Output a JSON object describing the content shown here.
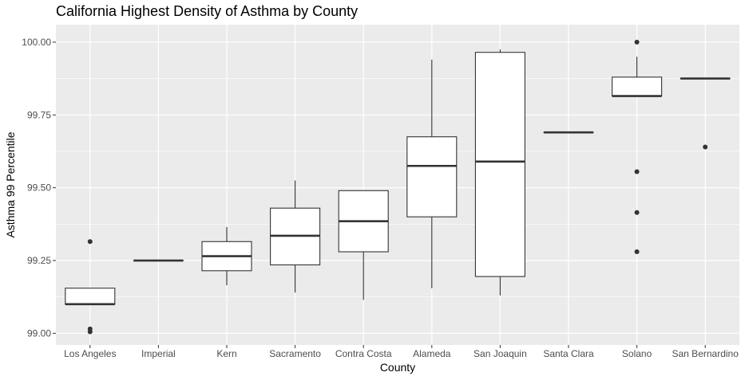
{
  "chart_data": {
    "type": "boxplot",
    "title": "California Highest Density of Asthma by County",
    "xlabel": "County",
    "ylabel": "Asthma 99 Percentile",
    "ylim": [
      98.96,
      100.06
    ],
    "yticks": [
      99.0,
      99.25,
      99.5,
      99.75,
      100.0
    ],
    "ytick_labels": [
      "99.00",
      "99.25",
      "99.50",
      "99.75",
      "100.00"
    ],
    "grid": true,
    "legend": "none",
    "colors": {
      "panel_bg": "#ebebeb",
      "grid_major": "#ffffff",
      "box_fill": "#ffffff",
      "box_stroke": "#333333",
      "tick_mark": "#333333"
    },
    "categories": [
      "Los Angeles",
      "Imperial",
      "Kern",
      "Sacramento",
      "Contra Costa",
      "Alameda",
      "San Joaquin",
      "Santa Clara",
      "Solano",
      "San Bernardino"
    ],
    "boxes": [
      {
        "county": "Los Angeles",
        "whisker_low": 99.1,
        "q1": 99.1,
        "median": 99.1,
        "q3": 99.155,
        "whisker_high": 99.155,
        "outliers": [
          99.015,
          99.005,
          99.315
        ]
      },
      {
        "county": "Imperial",
        "whisker_low": 99.25,
        "q1": 99.25,
        "median": 99.25,
        "q3": 99.25,
        "whisker_high": 99.25,
        "outliers": []
      },
      {
        "county": "Kern",
        "whisker_low": 99.165,
        "q1": 99.215,
        "median": 99.265,
        "q3": 99.315,
        "whisker_high": 99.365,
        "outliers": []
      },
      {
        "county": "Sacramento",
        "whisker_low": 99.14,
        "q1": 99.235,
        "median": 99.335,
        "q3": 99.43,
        "whisker_high": 99.525,
        "outliers": []
      },
      {
        "county": "Contra Costa",
        "whisker_low": 99.115,
        "q1": 99.28,
        "median": 99.385,
        "q3": 99.49,
        "whisker_high": 99.49,
        "outliers": []
      },
      {
        "county": "Alameda",
        "whisker_low": 99.155,
        "q1": 99.4,
        "median": 99.575,
        "q3": 99.675,
        "whisker_high": 99.94,
        "outliers": []
      },
      {
        "county": "San Joaquin",
        "whisker_low": 99.13,
        "q1": 99.195,
        "median": 99.59,
        "q3": 99.965,
        "whisker_high": 99.975,
        "outliers": []
      },
      {
        "county": "Santa Clara",
        "whisker_low": 99.69,
        "q1": 99.69,
        "median": 99.69,
        "q3": 99.69,
        "whisker_high": 99.69,
        "outliers": []
      },
      {
        "county": "Solano",
        "whisker_low": 99.815,
        "q1": 99.815,
        "median": 99.815,
        "q3": 99.88,
        "whisker_high": 99.95,
        "outliers": [
          100.0,
          99.555,
          99.415,
          99.28
        ]
      },
      {
        "county": "San Bernardino",
        "whisker_low": 99.875,
        "q1": 99.875,
        "median": 99.875,
        "q3": 99.875,
        "whisker_high": 99.875,
        "outliers": [
          99.64
        ]
      }
    ]
  }
}
